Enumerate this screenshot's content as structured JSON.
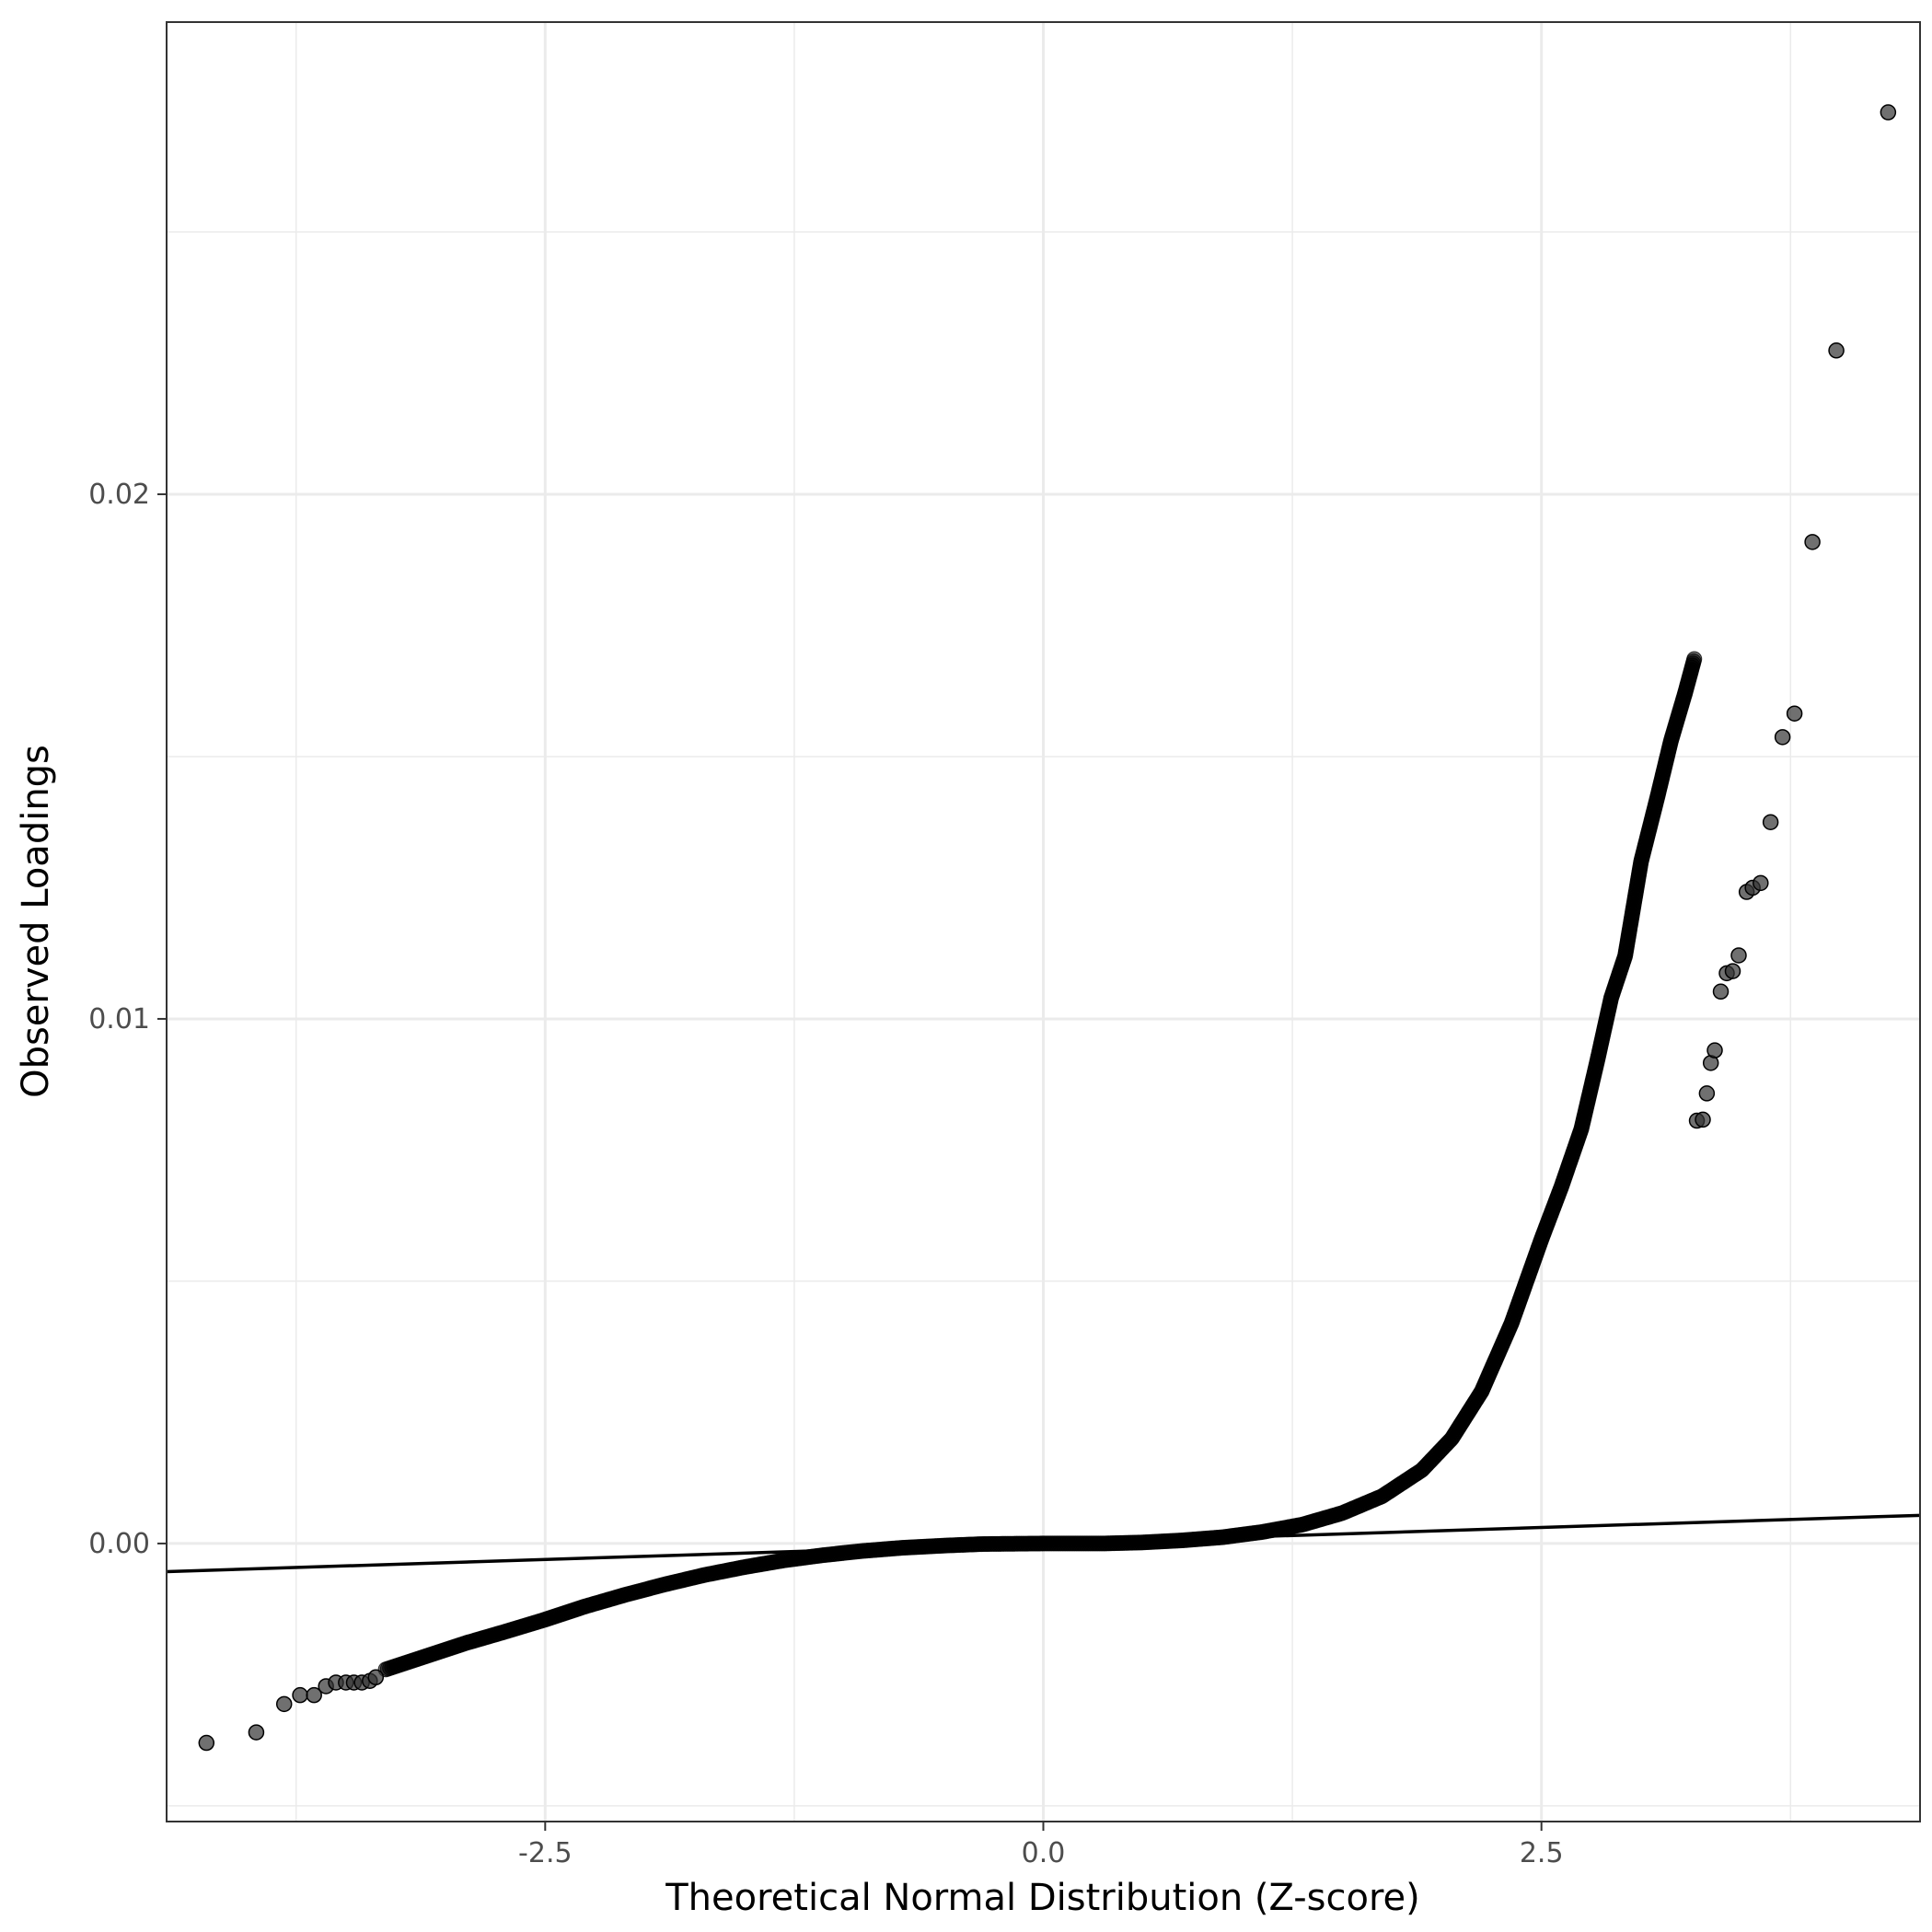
{
  "chart_data": {
    "type": "scatter",
    "title": "",
    "xlabel": "Theoretical Normal Distribution (Z-score)",
    "ylabel": "Observed Loadings",
    "xlim": [
      -4.4,
      4.4
    ],
    "ylim": [
      -0.0053,
      0.029
    ],
    "x_ticks": [
      -2.5,
      0.0,
      2.5
    ],
    "x_tick_labels": [
      "-2.5",
      "0.0",
      "2.5"
    ],
    "y_ticks": [
      0.0,
      0.01,
      0.02
    ],
    "y_tick_labels": [
      "0.00",
      "0.01",
      "0.02"
    ],
    "grid": true,
    "legend": "none",
    "point_color": "#333333",
    "reference_line": {
      "slope": 0.000122,
      "intercept": 0.0
    },
    "outlier_points": [
      {
        "x": -4.2,
        "y": -0.0038
      },
      {
        "x": -3.95,
        "y": -0.0036
      },
      {
        "x": -3.81,
        "y": -0.00306
      },
      {
        "x": -3.73,
        "y": -0.00289
      },
      {
        "x": -3.66,
        "y": -0.00289
      },
      {
        "x": -3.6,
        "y": -0.00272
      },
      {
        "x": -3.55,
        "y": -0.00265
      },
      {
        "x": -3.5,
        "y": -0.00265
      },
      {
        "x": -3.46,
        "y": -0.00265
      },
      {
        "x": -3.42,
        "y": -0.00265
      },
      {
        "x": -3.38,
        "y": -0.00262
      },
      {
        "x": -3.35,
        "y": -0.00255
      },
      {
        "x": 3.28,
        "y": 0.00806
      },
      {
        "x": 3.31,
        "y": 0.00808
      },
      {
        "x": 3.33,
        "y": 0.00858
      },
      {
        "x": 3.35,
        "y": 0.00916
      },
      {
        "x": 3.37,
        "y": 0.0094
      },
      {
        "x": 3.4,
        "y": 0.01052
      },
      {
        "x": 3.43,
        "y": 0.01087
      },
      {
        "x": 3.46,
        "y": 0.01091
      },
      {
        "x": 3.49,
        "y": 0.01121
      },
      {
        "x": 3.53,
        "y": 0.01242
      },
      {
        "x": 3.56,
        "y": 0.0125
      },
      {
        "x": 3.6,
        "y": 0.01259
      },
      {
        "x": 3.65,
        "y": 0.01375
      },
      {
        "x": 3.71,
        "y": 0.01537
      },
      {
        "x": 3.77,
        "y": 0.01582
      },
      {
        "x": 3.86,
        "y": 0.01909
      },
      {
        "x": 3.98,
        "y": 0.02274
      },
      {
        "x": 4.24,
        "y": 0.02728
      }
    ],
    "dense_curve": [
      {
        "x": -3.3,
        "y": -0.0024
      },
      {
        "x": -3.1,
        "y": -0.00215
      },
      {
        "x": -2.9,
        "y": -0.0019
      },
      {
        "x": -2.7,
        "y": -0.00168
      },
      {
        "x": -2.5,
        "y": -0.00145
      },
      {
        "x": -2.3,
        "y": -0.0012
      },
      {
        "x": -2.1,
        "y": -0.00098
      },
      {
        "x": -1.9,
        "y": -0.00078
      },
      {
        "x": -1.7,
        "y": -0.0006
      },
      {
        "x": -1.5,
        "y": -0.00045
      },
      {
        "x": -1.3,
        "y": -0.00032
      },
      {
        "x": -1.1,
        "y": -0.00022
      },
      {
        "x": -0.9,
        "y": -0.00014
      },
      {
        "x": -0.7,
        "y": -8e-05
      },
      {
        "x": -0.5,
        "y": -4e-05
      },
      {
        "x": -0.3,
        "y": -1e-05
      },
      {
        "x": 0.0,
        "y": 0.0
      },
      {
        "x": 0.3,
        "y": 0.0
      },
      {
        "x": 0.5,
        "y": 2e-05
      },
      {
        "x": 0.7,
        "y": 6e-05
      },
      {
        "x": 0.9,
        "y": 0.00012
      },
      {
        "x": 1.1,
        "y": 0.00022
      },
      {
        "x": 1.3,
        "y": 0.00036
      },
      {
        "x": 1.5,
        "y": 0.00058
      },
      {
        "x": 1.7,
        "y": 0.0009
      },
      {
        "x": 1.9,
        "y": 0.0014
      },
      {
        "x": 2.05,
        "y": 0.002
      },
      {
        "x": 2.2,
        "y": 0.0029
      },
      {
        "x": 2.35,
        "y": 0.0042
      },
      {
        "x": 2.5,
        "y": 0.0058
      },
      {
        "x": 2.6,
        "y": 0.0068
      },
      {
        "x": 2.7,
        "y": 0.0079
      },
      {
        "x": 2.78,
        "y": 0.0092
      },
      {
        "x": 2.85,
        "y": 0.0104
      },
      {
        "x": 2.92,
        "y": 0.0112
      },
      {
        "x": 3.0,
        "y": 0.013
      },
      {
        "x": 3.08,
        "y": 0.0142
      },
      {
        "x": 3.15,
        "y": 0.0153
      },
      {
        "x": 3.22,
        "y": 0.0162
      },
      {
        "x": 3.27,
        "y": 0.0169
      }
    ]
  }
}
